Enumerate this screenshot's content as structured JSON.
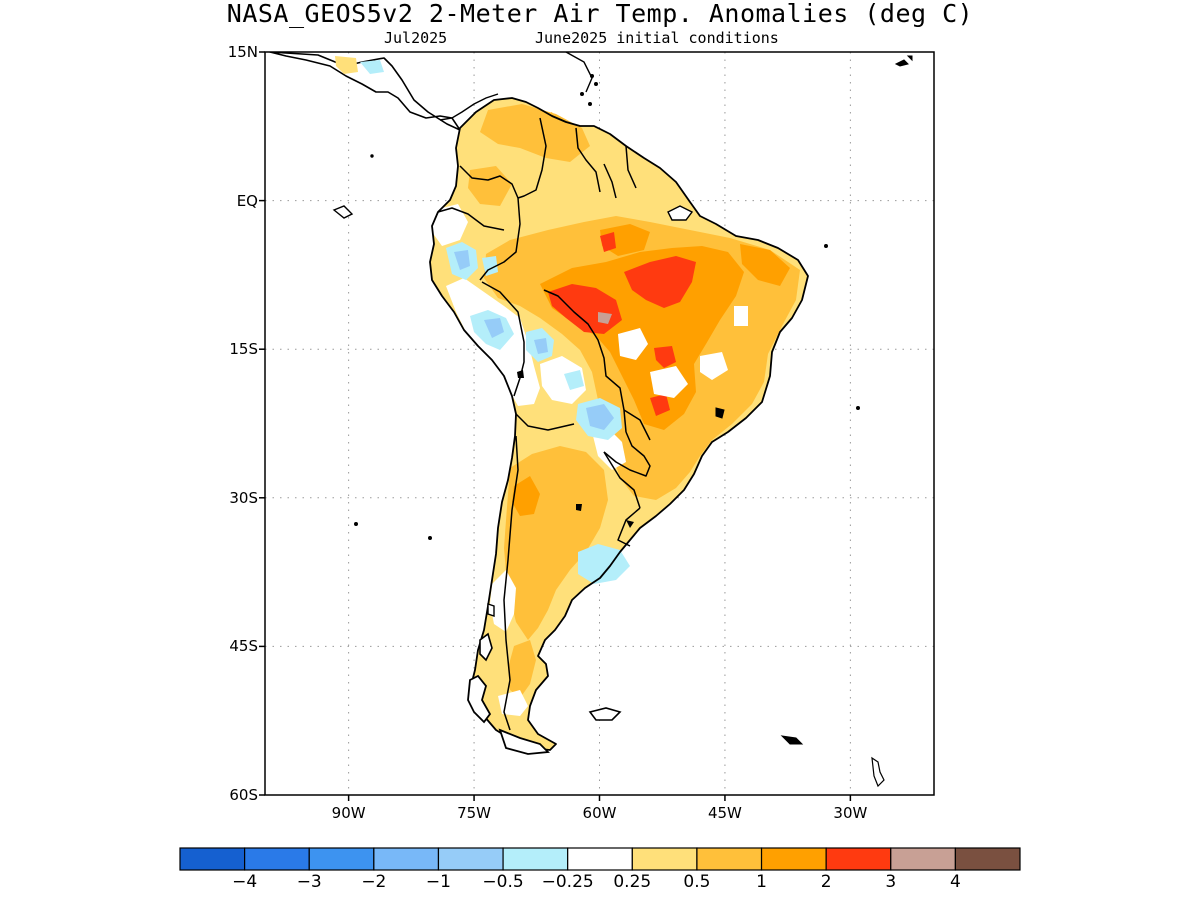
{
  "title": "NASA_GEOS5v2 2-Meter Air Temp. Anomalies (deg C)",
  "subtitle_left": "Jul2025",
  "subtitle_right": "June2025 initial conditions",
  "map": {
    "lon_range": [
      -100,
      -20
    ],
    "lat_range": [
      -60,
      15
    ],
    "grid": true,
    "y_ticks": [
      {
        "value": 15,
        "label": "15N"
      },
      {
        "value": 0,
        "label": "EQ"
      },
      {
        "value": -15,
        "label": "15S"
      },
      {
        "value": -30,
        "label": "30S"
      },
      {
        "value": -45,
        "label": "45S"
      },
      {
        "value": -60,
        "label": "60S"
      }
    ],
    "x_ticks": [
      {
        "value": -90,
        "label": "90W"
      },
      {
        "value": -75,
        "label": "75W"
      },
      {
        "value": -60,
        "label": "60W"
      },
      {
        "value": -45,
        "label": "45W"
      },
      {
        "value": -30,
        "label": "30W"
      }
    ]
  },
  "colorbar": {
    "colors": [
      "#1560d0",
      "#2a7ae8",
      "#3d93f0",
      "#78b8f8",
      "#96ccf8",
      "#b4eefa",
      "#ffffff",
      "#ffe07a",
      "#ffc03a",
      "#ffa000",
      "#ff3a10",
      "#c8a095",
      "#7a5040"
    ],
    "labels": [
      "−4",
      "−3",
      "−2",
      "−1",
      "−0.5",
      "−0.25",
      "0.25",
      "0.5",
      "1",
      "2",
      "3",
      "4"
    ]
  },
  "colors": {
    "coast": "#000000",
    "grid": "#9a9a9a"
  }
}
